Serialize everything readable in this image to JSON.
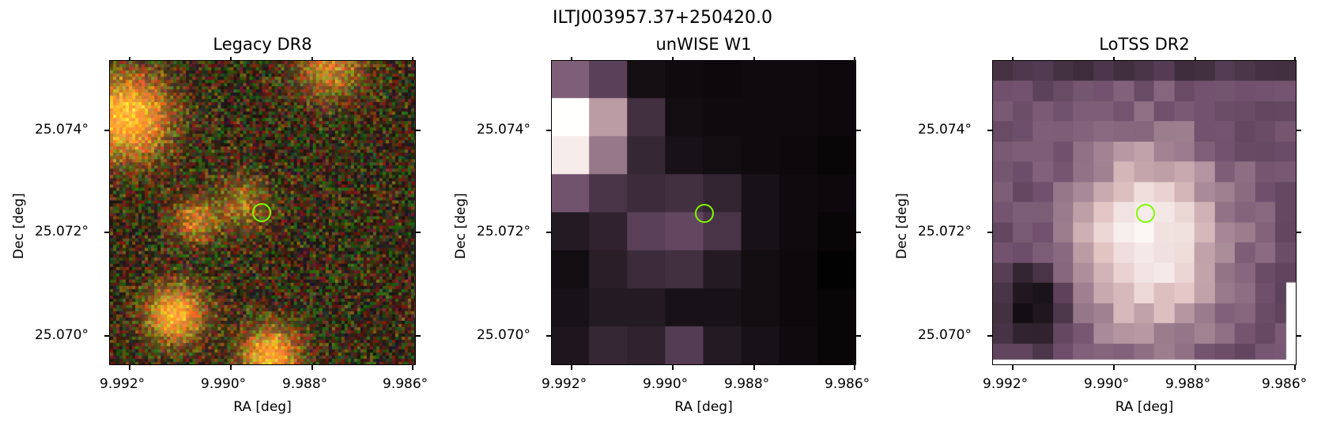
{
  "figure": {
    "title": "ILTJ003957.37+250420.0",
    "panels": [
      {
        "title": "Legacy DR8",
        "xlabel": "RA [deg]",
        "ylabel": "Dec [deg]",
        "xticks": [
          "9.992°",
          "9.990°",
          "9.988°",
          "9.986°"
        ],
        "yticks": [
          "25.074°",
          "25.072°",
          "25.070°"
        ],
        "colormap": "rgb",
        "marker_color": "#7cfc00"
      },
      {
        "title": "unWISE W1",
        "xlabel": "RA [deg]",
        "ylabel": "Dec [deg]",
        "xticks": [
          "9.992°",
          "9.990°",
          "9.988°",
          "9.986°"
        ],
        "yticks": [
          "25.074°",
          "25.072°",
          "25.070°"
        ],
        "colormap": "bone",
        "marker_color": "#7cfc00"
      },
      {
        "title": "LoTSS DR2",
        "xlabel": "RA [deg]",
        "ylabel": "Dec [deg]",
        "xticks": [
          "9.992°",
          "9.990°",
          "9.988°",
          "9.986°"
        ],
        "yticks": [
          "25.074°",
          "25.072°",
          "25.070°"
        ],
        "colormap": "bone",
        "marker_color": "#7cfc00"
      }
    ]
  }
}
